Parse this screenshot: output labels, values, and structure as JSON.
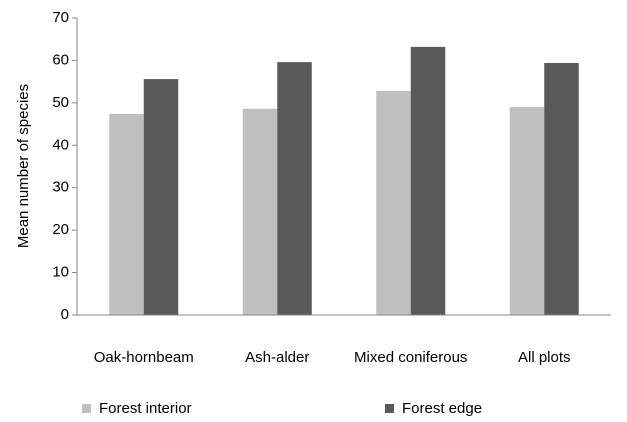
{
  "chart_data": {
    "type": "bar",
    "y_label": "Mean number of species",
    "categories": [
      "Oak-hornbeam",
      "Ash-alder",
      "Mixed coniferous",
      "All plots"
    ],
    "series": [
      {
        "name": "Forest interior",
        "color": "#bfbfbf",
        "values": [
          47.4,
          48.6,
          52.8,
          49.0
        ]
      },
      {
        "name": "Forest edge",
        "color": "#595959",
        "values": [
          55.6,
          59.6,
          63.2,
          59.4
        ]
      }
    ],
    "ylim": [
      0,
      70
    ],
    "yticks": [
      0,
      10,
      20,
      30,
      40,
      50,
      60,
      70
    ],
    "grid": false,
    "legend": "bottom"
  }
}
